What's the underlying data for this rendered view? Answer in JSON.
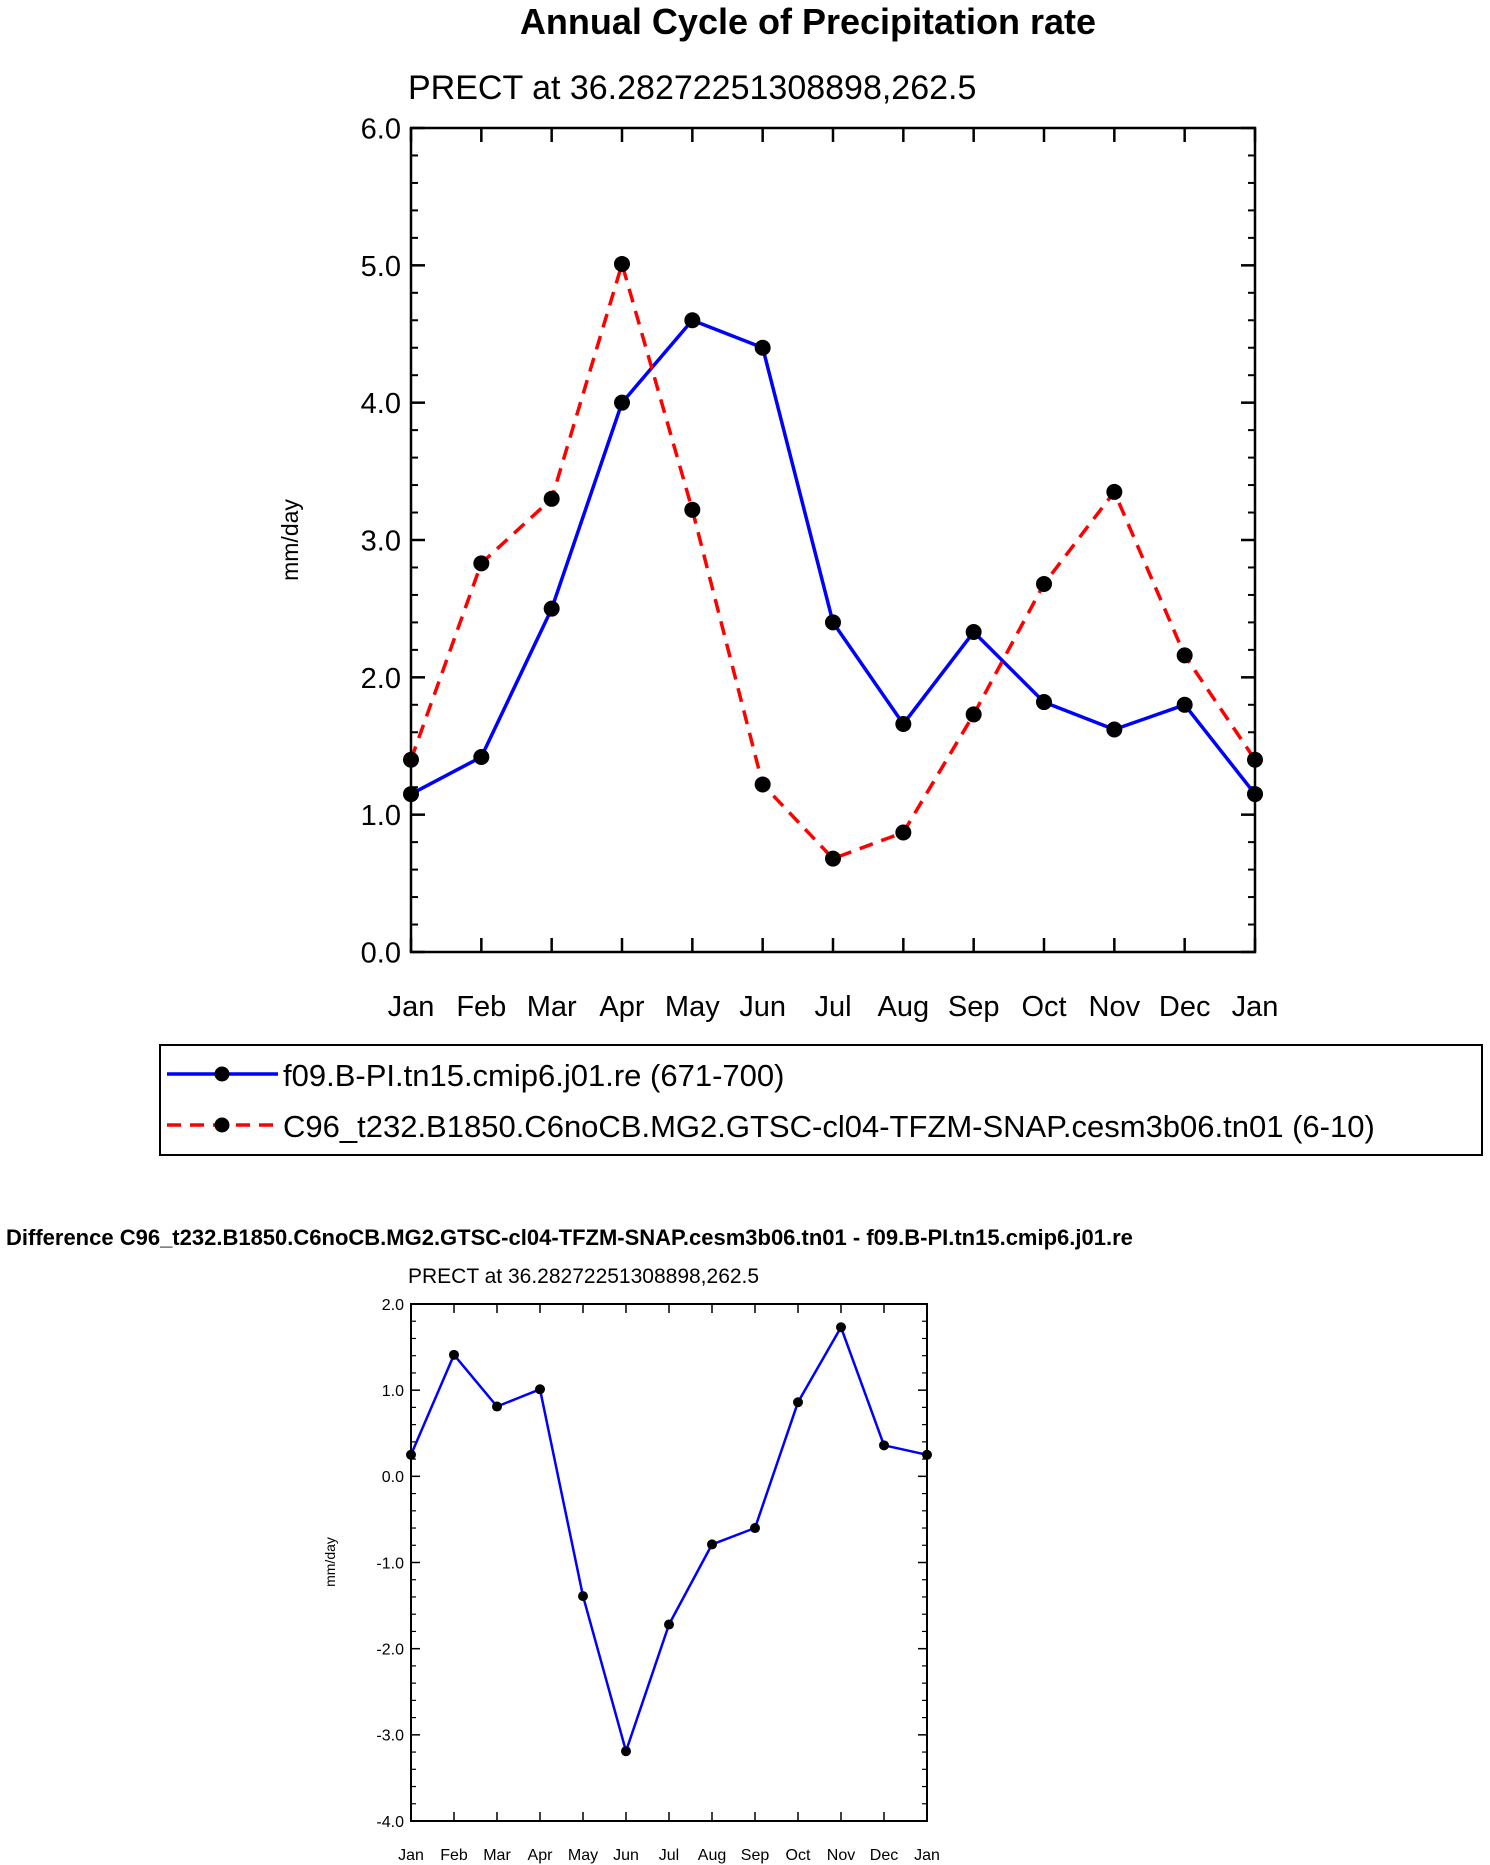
{
  "chart_data": [
    {
      "type": "line",
      "title": "Annual Cycle of Precipitation rate",
      "subtitle": "PRECT at 36.28272251308898,262.5",
      "xlabel": "",
      "ylabel": "mm/day",
      "ylim": [
        0,
        6
      ],
      "yticks": [
        "0.0",
        "1.0",
        "2.0",
        "3.0",
        "4.0",
        "5.0",
        "6.0"
      ],
      "categories": [
        "Jan",
        "Feb",
        "Mar",
        "Apr",
        "May",
        "Jun",
        "Jul",
        "Aug",
        "Sep",
        "Oct",
        "Nov",
        "Dec",
        "Jan"
      ],
      "series": [
        {
          "name": "f09.B-PI.tn15.cmip6.j01.re (671-700)",
          "color": "#0000ff",
          "style": "solid",
          "values": [
            1.15,
            1.42,
            2.5,
            4.0,
            4.6,
            4.4,
            2.4,
            1.66,
            2.33,
            1.82,
            1.62,
            1.8,
            1.15
          ]
        },
        {
          "name": "C96_t232.B1850.C6noCB.MG2.GTSC-cl04-TFZM-SNAP.cesm3b06.tn01 (6-10)",
          "color": "#ff0000",
          "style": "dashed",
          "values": [
            1.4,
            2.83,
            3.3,
            5.01,
            3.22,
            1.22,
            0.68,
            0.87,
            1.73,
            2.68,
            3.35,
            2.16,
            1.4
          ]
        }
      ]
    },
    {
      "type": "line",
      "title": "Difference C96_t232.B1850.C6noCB.MG2.GTSC-cl04-TFZM-SNAP.cesm3b06.tn01 - f09.B-PI.tn15.cmip6.j01.re",
      "subtitle": "PRECT at 36.28272251308898,262.5",
      "xlabel": "",
      "ylabel": "mm/day",
      "ylim": [
        -4,
        2
      ],
      "yticks": [
        "-4.0",
        "-3.0",
        "-2.0",
        "-1.0",
        "0.0",
        "1.0",
        "2.0"
      ],
      "categories": [
        "Jan",
        "Feb",
        "Mar",
        "Apr",
        "May",
        "Jun",
        "Jul",
        "Aug",
        "Sep",
        "Oct",
        "Nov",
        "Dec",
        "Jan"
      ],
      "series": [
        {
          "name": "Difference",
          "color": "#0000ff",
          "style": "solid",
          "values": [
            0.25,
            1.41,
            0.81,
            1.01,
            -1.39,
            -3.19,
            -1.72,
            -0.79,
            -0.6,
            0.86,
            1.73,
            0.36,
            0.25
          ]
        }
      ]
    }
  ]
}
